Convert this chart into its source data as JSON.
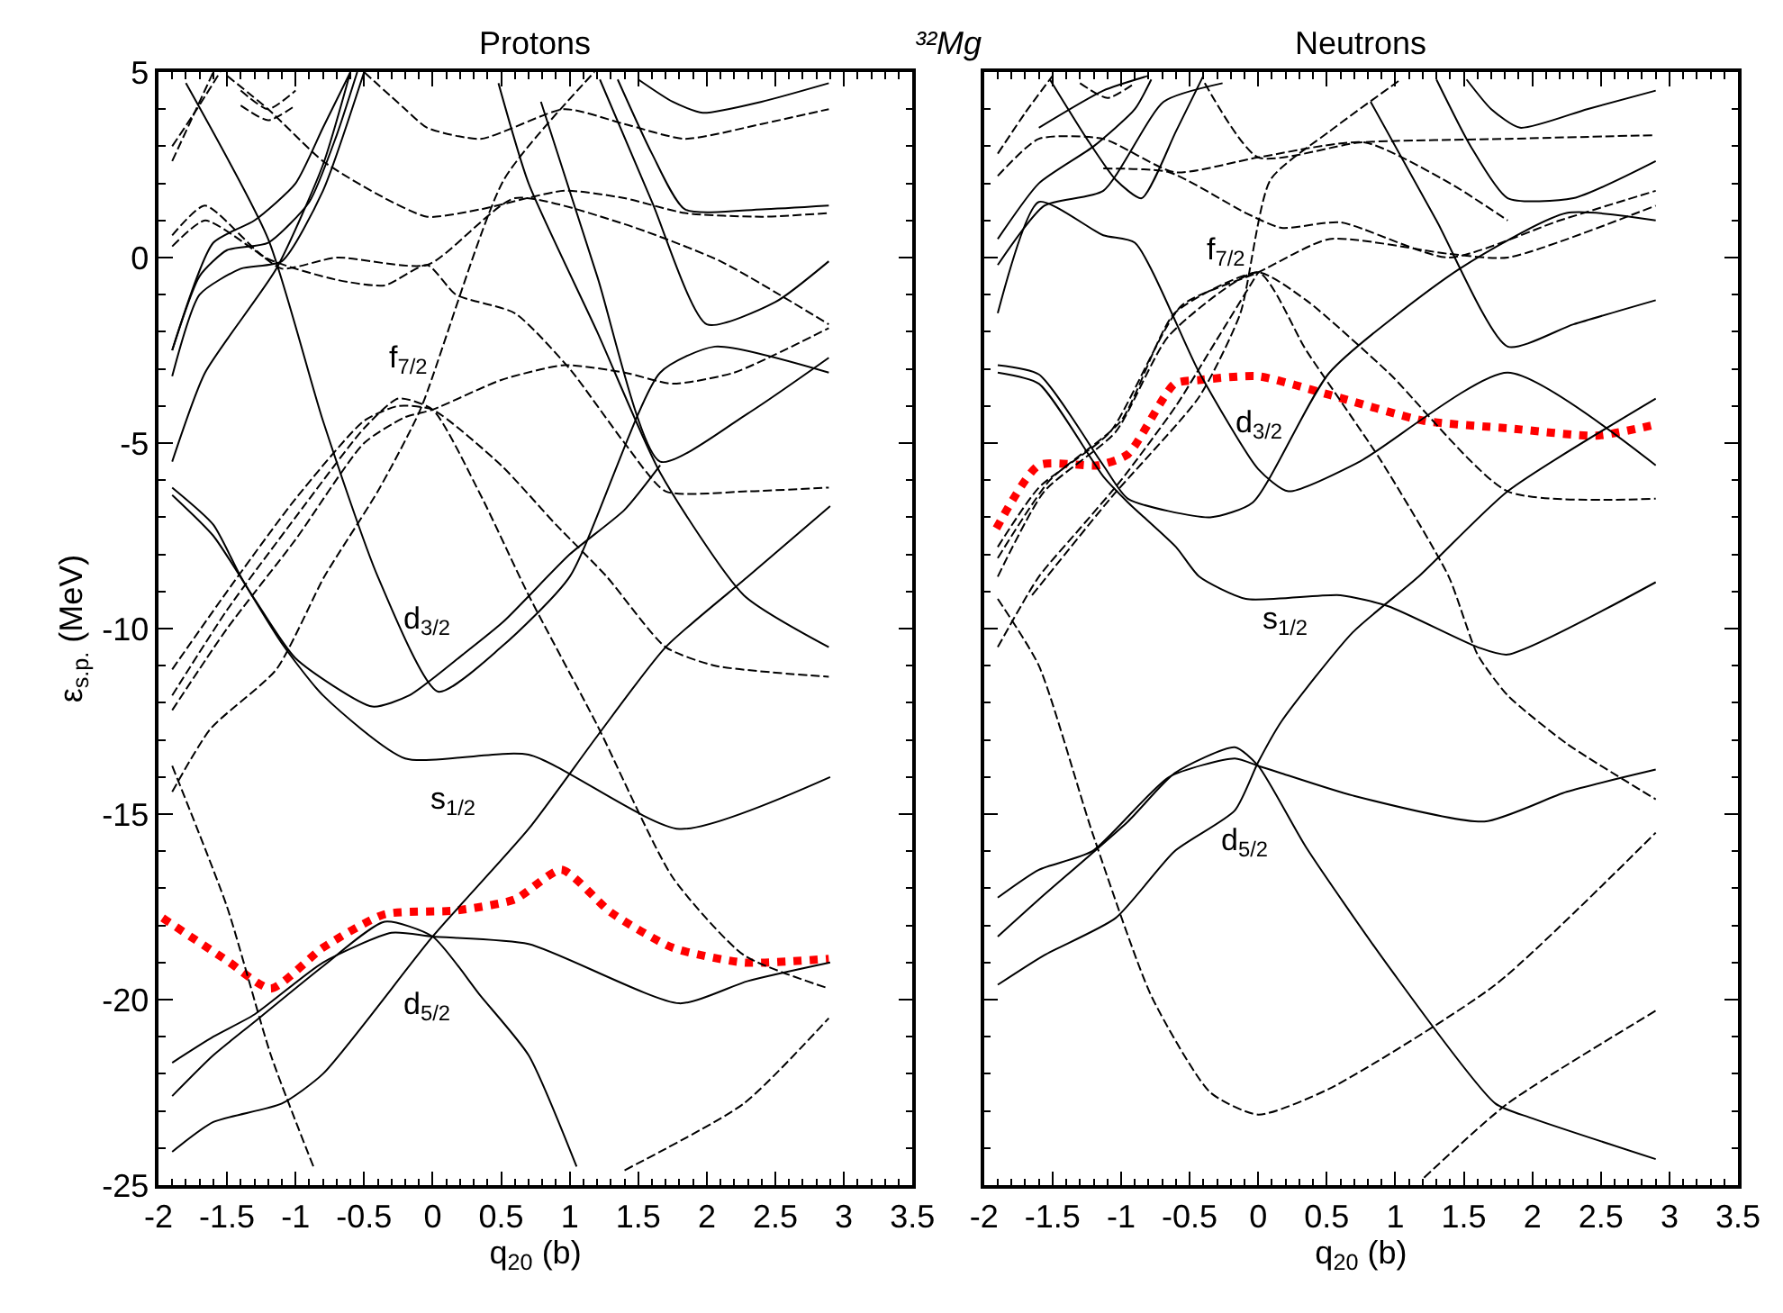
{
  "chart_data": [
    {
      "type": "line",
      "title": "Protons",
      "xlabel": "q$_{20}$ (b)",
      "ylabel": "ε$_{s.p.}$ (MeV)",
      "xlim": [
        -2,
        3.5
      ],
      "ylim": [
        -25,
        5
      ],
      "xticks": [
        -2,
        -1.5,
        -1,
        -0.5,
        0,
        0.5,
        1,
        1.5,
        2,
        2.5,
        3,
        3.5
      ],
      "yticks": [
        -25,
        -20,
        -15,
        -10,
        -5,
        0,
        5
      ],
      "annotations": [
        "³²Mg",
        {
          "text": "f$_{7/2}$",
          "x": 0,
          "y": -4.1
        },
        {
          "text": "d$_{3/2}$",
          "x": 0.04,
          "y": -11.7
        },
        {
          "text": "s$_{1/2}$",
          "x": -0.2,
          "y": -13.5
        },
        {
          "text": "d$_{5/2}$",
          "x": 0,
          "y": -18.3
        }
      ],
      "series": [
        {
          "color": "#ff0000",
          "line_style": "dotted",
          "x": [
            -1.97,
            -1.5,
            -1.18,
            -0.8,
            -0.35,
            0.17,
            0.6,
            0.94,
            1.3,
            1.75,
            2.27,
            2.89
          ],
          "values": [
            -17.8,
            -18.95,
            -19.7,
            -18.6,
            -17.7,
            -17.6,
            -17.3,
            -16.5,
            -17.65,
            -18.6,
            -19.0,
            -18.9
          ]
        },
        {
          "color": "#000000",
          "line_style": "solid",
          "x": [
            -1.9,
            -1.6,
            -1.3,
            -0.8,
            -0.3,
            0,
            0.7,
            1.8,
            2.3,
            2.9
          ],
          "values": [
            -21.7,
            -21.0,
            -20.4,
            -19.0,
            -18.2,
            -18.3,
            -18.5,
            -20.1,
            -19.5,
            -19.0
          ]
        },
        {
          "color": "#000000",
          "line_style": "solid",
          "x": [
            -1.9,
            -1.6,
            -1.3,
            -0.8,
            -0.35,
            0,
            0.35,
            0.7,
            1.05
          ],
          "values": [
            -22.6,
            -21.5,
            -20.6,
            -19.1,
            -17.9,
            -18.3,
            -19.9,
            -21.5,
            -24.5
          ]
        },
        {
          "color": "#000000",
          "line_style": "solid",
          "x": [
            -1.9,
            -1.6,
            -1.1,
            -0.8,
            0,
            0.7,
            1.2,
            1.7,
            2.3,
            2.9
          ],
          "values": [
            -24.1,
            -23.3,
            -22.8,
            -22.0,
            -18.3,
            -15.4,
            -12.9,
            -10.5,
            -8.6,
            -6.7
          ]
        },
        {
          "color": "#000000",
          "line_style": "solid",
          "x": [
            -1.9,
            -1.6,
            -1.4,
            -1.1,
            -0.8,
            -0.2,
            0.7,
            1.8,
            2.9
          ],
          "values": [
            -6.2,
            -7.2,
            -8.6,
            -10.4,
            -11.8,
            -13.5,
            -13.4,
            -15.4,
            -14.0
          ]
        },
        {
          "color": "#000000",
          "line_style": "solid",
          "x": [
            -1.9,
            -1.6,
            -1.3,
            -1.0,
            -0.44,
            -0.17,
            0.22,
            0.52,
            1.0,
            1.4,
            1.66
          ],
          "values": [
            -6.4,
            -7.5,
            -9.2,
            -10.8,
            -12.1,
            -11.8,
            -10.7,
            -9.8,
            -8.0,
            -6.8,
            -5.6
          ]
        },
        {
          "color": "#000000",
          "line_style": "solid",
          "x": [
            -1.8,
            -1.2,
            -0.8,
            -0.4,
            0.04,
            0.5,
            1.0,
            1.66,
            2.06,
            2.89
          ],
          "values": [
            4.7,
            0.5,
            -4.4,
            -8.6,
            -11.7,
            -10.5,
            -8.6,
            -3.1,
            -2.4,
            -3.1
          ]
        },
        {
          "color": "#000000",
          "line_style": "solid",
          "x": [
            0.48,
            0.7,
            1.2,
            1.66,
            2.27,
            2.89
          ],
          "values": [
            4.7,
            2.0,
            -2.0,
            -5.8,
            -9.1,
            -10.5
          ]
        },
        {
          "color": "#000000",
          "line_style": "solid",
          "x": [
            0.79,
            1.2,
            1.66,
            2.3,
            2.89
          ],
          "values": [
            4.2,
            -0.5,
            -5.5,
            -4.2,
            -2.7
          ]
        },
        {
          "color": "#000000",
          "line_style": "solid",
          "x": [
            1.22,
            1.6,
            2.0,
            2.5,
            2.89
          ],
          "values": [
            4.8,
            1.5,
            -1.8,
            -1.2,
            -0.1
          ]
        },
        {
          "color": "#000000",
          "line_style": "solid",
          "x": [
            1.5,
            1.75,
            1.97,
            2.4,
            2.89
          ],
          "values": [
            4.8,
            4.2,
            3.9,
            4.2,
            4.7
          ]
        },
        {
          "color": "#000000",
          "line_style": "solid",
          "x": [
            1.35,
            1.6,
            1.84,
            2.4,
            2.89
          ],
          "values": [
            4.8,
            2.8,
            1.3,
            1.3,
            1.4
          ]
        },
        {
          "color": "#000000",
          "line_style": "solid",
          "x": [
            -1.9,
            -1.6,
            -1.3,
            -1.0,
            -0.8,
            -0.6
          ],
          "values": [
            -2.5,
            0.4,
            1.0,
            2.0,
            3.5,
            5.0
          ]
        },
        {
          "color": "#000000",
          "line_style": "solid",
          "x": [
            -1.9,
            -1.7,
            -1.5,
            -1.2,
            -0.9,
            -0.7,
            -0.55
          ],
          "values": [
            -2.5,
            -0.5,
            0.2,
            0.4,
            1.5,
            3.3,
            5.0
          ]
        },
        {
          "color": "#000000",
          "line_style": "solid",
          "x": [
            -1.9,
            -1.7,
            -1.4,
            -1.1,
            -0.8,
            -0.5
          ],
          "values": [
            -3.2,
            -1.0,
            -0.3,
            -0.1,
            1.8,
            5.0
          ]
        },
        {
          "color": "#000000",
          "line_style": "solid",
          "x": [
            -1.9,
            -1.66,
            -1.14,
            -0.8,
            -0.6
          ],
          "values": [
            -5.5,
            -3.1,
            -0.3,
            2.5,
            5.0
          ]
        },
        {
          "color": "#000000",
          "line_style": "dashed",
          "x": [
            -1.9,
            -1.5,
            -1.18,
            -0.87
          ],
          "values": [
            -13.7,
            -17.5,
            -21.5,
            -24.5
          ]
        },
        {
          "color": "#000000",
          "line_style": "dashed",
          "x": [
            -1.9,
            -1.62,
            -1.14,
            -0.79,
            -0.4,
            -0.09,
            0.52,
            1.18
          ],
          "values": [
            -14.4,
            -12.7,
            -11.1,
            -8.6,
            -6.3,
            -4.1,
            2.1,
            5.0
          ]
        },
        {
          "color": "#000000",
          "line_style": "dashed",
          "x": [
            -1.9,
            -1.5,
            -1.0,
            -0.5,
            -0.25,
            0,
            0.35,
            0.7,
            1.2,
            1.75,
            2.27,
            2.89
          ],
          "values": [
            -11.8,
            -9.5,
            -7.0,
            -4.6,
            -3.8,
            -4.1,
            -6.4,
            -9.1,
            -12.6,
            -16.7,
            -18.8,
            -19.7
          ]
        },
        {
          "color": "#000000",
          "line_style": "dashed",
          "x": [
            -1.9,
            -1.5,
            -1.0,
            -0.5,
            -0.25,
            0,
            0.5,
            0.9,
            1.27,
            1.7,
            2.06,
            2.89
          ],
          "values": [
            -11.1,
            -9.0,
            -6.5,
            -4.4,
            -4.0,
            -4.1,
            -5.6,
            -7.2,
            -8.6,
            -10.5,
            -11.0,
            -11.3
          ]
        },
        {
          "color": "#000000",
          "line_style": "dashed",
          "x": [
            -1.9,
            -1.5,
            -1.0,
            -0.5,
            -0.2,
            0,
            0.5,
            0.96,
            1.4,
            1.75,
            2.2,
            2.89
          ],
          "values": [
            -12.2,
            -10.0,
            -7.6,
            -5.0,
            -4.3,
            -4.1,
            -3.3,
            -2.9,
            -3.1,
            -3.4,
            -3.1,
            -1.9
          ]
        },
        {
          "color": "#000000",
          "line_style": "dashed",
          "x": [
            -1.9,
            -1.66,
            -1.22,
            -0.7,
            -0.35,
            -0.04,
            0.17,
            0.6,
            1.0,
            1.4,
            1.7,
            2.3,
            2.89
          ],
          "values": [
            0.6,
            1.4,
            0.0,
            -0.6,
            -0.75,
            -0.2,
            -1.0,
            -1.5,
            -3.0,
            -5.0,
            -6.3,
            -6.3,
            -6.2
          ]
        },
        {
          "color": "#000000",
          "line_style": "dashed",
          "x": [
            -1.9,
            -1.66,
            -1.3,
            -1.1,
            -0.7,
            -0.04,
            0.6,
            1.4,
            2.1,
            2.89
          ],
          "values": [
            0.3,
            1.0,
            0.2,
            -0.3,
            0.0,
            -0.2,
            1.6,
            0.9,
            -0.1,
            -1.8
          ]
        },
        {
          "color": "#000000",
          "line_style": "dashed",
          "x": [
            -1.5,
            -1.2,
            -0.8,
            -0.4,
            -0.04,
            0.35,
            0.96,
            1.4,
            1.84,
            2.4,
            2.89
          ],
          "values": [
            4.9,
            4.0,
            2.6,
            1.7,
            1.1,
            1.3,
            1.8,
            1.6,
            1.2,
            1.1,
            1.2
          ]
        },
        {
          "color": "#000000",
          "line_style": "dashed",
          "x": [
            -0.5,
            -0.2,
            -0.04,
            0.35,
            0.96,
            1.4,
            1.84,
            2.4,
            2.89
          ],
          "values": [
            5.0,
            4.0,
            3.5,
            3.2,
            4.0,
            3.6,
            3.2,
            3.6,
            4.0
          ]
        },
        {
          "color": "#000000",
          "line_style": "dashed",
          "x": [
            -1.4,
            -1.2,
            -1.0
          ],
          "values": [
            4.5,
            4.0,
            4.5
          ]
        },
        {
          "color": "#000000",
          "line_style": "dashed",
          "x": [
            -1.4,
            -1.2,
            -1.0
          ],
          "values": [
            4.1,
            3.7,
            4.1
          ]
        },
        {
          "color": "#000000",
          "line_style": "dashed",
          "x": [
            -1.9,
            -1.75,
            -1.6
          ],
          "values": [
            2.6,
            3.8,
            5.0
          ]
        },
        {
          "color": "#000000",
          "line_style": "dashed",
          "x": [
            -1.9,
            -1.72,
            -1.55
          ],
          "values": [
            3.0,
            4.0,
            5.0
          ]
        },
        {
          "color": "#000000",
          "line_style": "dashed",
          "x": [
            1.4,
            2.27,
            2.89
          ],
          "values": [
            -24.6,
            -22.8,
            -20.5
          ]
        }
      ]
    },
    {
      "type": "line",
      "title": "Neutrons",
      "xlabel": "q$_{20}$ (b)",
      "xlim": [
        -2,
        3.5
      ],
      "ylim": [
        -25,
        5
      ],
      "xticks": [
        -2,
        -1.5,
        -1,
        -0.5,
        0,
        0.5,
        1,
        1.5,
        2,
        2.5,
        3,
        3.5
      ],
      "yticks": [
        -25,
        -20,
        -15,
        -10,
        -5,
        0,
        5
      ],
      "tick_labels": "x",
      "annotations": [
        {
          "text": "f$_{7/2}$",
          "x": 0,
          "y": -0.4
        },
        {
          "text": "d$_{3/2}$",
          "x": 0,
          "y": -5.7
        },
        {
          "text": "s$_{1/2}$",
          "x": -0.09,
          "y": -9.2
        },
        {
          "text": "d$_{5/2}$",
          "x": 0,
          "y": -13.6
        }
      ],
      "series": [
        {
          "color": "#ff0000",
          "line_style": "dotted",
          "x": [
            -1.91,
            -1.6,
            -1.17,
            -0.95,
            -0.61,
            -0.43,
            0,
            0.52,
            1.21,
            1.82,
            2.47,
            2.9
          ],
          "values": [
            -7.3,
            -5.6,
            -5.6,
            -5.3,
            -3.4,
            -3.3,
            -3.2,
            -3.7,
            -4.4,
            -4.6,
            -4.8,
            -4.5
          ]
        },
        {
          "color": "#000000",
          "line_style": "solid",
          "x": [
            -1.9,
            -1.6,
            -1.13,
            -0.95,
            -0.6,
            -0.43,
            -0.09,
            0.6,
            0.95,
            1.6,
            1.82,
            2.9
          ],
          "values": [
            -3.1,
            -3.4,
            -5.9,
            -6.6,
            -7.8,
            -8.6,
            -9.2,
            -9.1,
            -9.4,
            -10.5,
            -10.7,
            -8.75
          ]
        },
        {
          "color": "#000000",
          "line_style": "solid",
          "x": [
            -1.9,
            -1.6,
            -1.13,
            -0.95,
            -0.35,
            -0.04,
            0.52,
            1.47,
            2.25,
            2.9
          ],
          "values": [
            -2.9,
            -3.15,
            -5.6,
            -6.5,
            -7.0,
            -6.6,
            -3.1,
            -0.3,
            1.2,
            1.0
          ]
        },
        {
          "color": "#000000",
          "line_style": "solid",
          "x": [
            -1.9,
            -1.6,
            -1.13,
            -0.9,
            -0.43,
            0,
            0.22,
            0.74,
            1.82,
            2.9
          ],
          "values": [
            -1.5,
            1.5,
            0.6,
            0.4,
            -3.1,
            -5.7,
            -6.3,
            -5.5,
            -3.1,
            -5.6
          ]
        },
        {
          "color": "#000000",
          "line_style": "solid",
          "x": [
            -1.9,
            -1.56,
            -1.04,
            -0.61,
            -0.17,
            0,
            0.17,
            0.69,
            1.17,
            1.82,
            2.9
          ],
          "values": [
            -19.6,
            -18.8,
            -17.8,
            -16.0,
            -14.9,
            -13.6,
            -12.5,
            -10.1,
            -8.6,
            -6.3,
            -3.8
          ]
        },
        {
          "color": "#000000",
          "line_style": "solid",
          "x": [
            -1.9,
            -1.6,
            -1.21,
            -0.65,
            -0.17,
            0,
            0.17,
            0.69,
            1.65,
            2.25,
            2.9
          ],
          "values": [
            -17.25,
            -16.5,
            -16.0,
            -14.0,
            -13.5,
            -13.7,
            -13.9,
            -14.5,
            -15.2,
            -14.4,
            -13.8
          ]
        },
        {
          "color": "#000000",
          "line_style": "solid",
          "x": [
            -1.9,
            -1.6,
            -0.95,
            -0.61,
            -0.17,
            0,
            0.35,
            0.95,
            1.73,
            2.0,
            2.9
          ],
          "values": [
            -18.3,
            -17.3,
            -15.2,
            -13.9,
            -13.2,
            -13.7,
            -15.9,
            -19.1,
            -22.8,
            -23.2,
            -24.3
          ]
        },
        {
          "color": "#000000",
          "line_style": "solid",
          "x": [
            0.82,
            1.3,
            1.82,
            2.3,
            2.9
          ],
          "values": [
            4.2,
            1.0,
            -2.4,
            -1.8,
            -1.15
          ]
        },
        {
          "color": "#000000",
          "line_style": "solid",
          "x": [
            1.52,
            1.7,
            1.91,
            2.4,
            2.9
          ],
          "values": [
            4.8,
            4.0,
            3.5,
            4.0,
            4.5
          ]
        },
        {
          "color": "#000000",
          "line_style": "solid",
          "x": [
            1.3,
            1.55,
            1.82,
            2.3,
            2.9
          ],
          "values": [
            4.8,
            3.0,
            1.6,
            1.6,
            2.6
          ]
        },
        {
          "color": "#000000",
          "line_style": "solid",
          "x": [
            -1.9,
            -1.6,
            -1.2,
            -0.9,
            -0.78
          ],
          "values": [
            0.5,
            2.0,
            3.0,
            4.0,
            4.8
          ]
        },
        {
          "color": "#000000",
          "line_style": "solid",
          "x": [
            -1.9,
            -1.56,
            -1.13,
            -0.69,
            -0.26
          ],
          "values": [
            -0.2,
            1.4,
            1.8,
            4.2,
            4.7
          ]
        },
        {
          "color": "#000000",
          "line_style": "solid",
          "x": [
            -1.52,
            -1.25,
            -1.04,
            -0.85,
            -0.6,
            -0.4
          ],
          "values": [
            4.8,
            3.2,
            2.1,
            1.6,
            3.4,
            4.9
          ]
        },
        {
          "color": "#000000",
          "line_style": "solid",
          "x": [
            -1.6,
            -1.13,
            -0.8
          ],
          "values": [
            3.5,
            4.5,
            4.9
          ]
        },
        {
          "color": "#000000",
          "line_style": "dashed",
          "x": [
            -1.9,
            -1.6,
            -1.21,
            -0.78,
            -0.35,
            0,
            0.52,
            1.73,
            2.9
          ],
          "values": [
            -9.2,
            -11.0,
            -15.5,
            -19.9,
            -22.5,
            -23.1,
            -22.4,
            -19.6,
            -15.5
          ]
        },
        {
          "color": "#000000",
          "line_style": "dashed",
          "x": [
            -1.9,
            -1.6,
            -1.3,
            -1.0,
            -0.6,
            -0.3,
            0
          ],
          "values": [
            -10.5,
            -8.6,
            -7.3,
            -6.0,
            -4.0,
            -2.2,
            -0.4
          ]
        },
        {
          "color": "#000000",
          "line_style": "dashed",
          "x": [
            -1.9,
            -1.52,
            -1.0,
            -0.61,
            0,
            0.35,
            0.95,
            1.82,
            2.9
          ],
          "values": [
            -8.1,
            -6.0,
            -4.4,
            -1.5,
            -0.4,
            -1.15,
            -3.1,
            -6.3,
            -6.5
          ]
        },
        {
          "color": "#000000",
          "line_style": "dashed",
          "x": [
            -1.9,
            -1.6,
            -1.08,
            -0.56,
            0,
            0.52,
            1.39,
            1.82,
            2.9
          ],
          "values": [
            -7.8,
            -6.2,
            -4.7,
            -1.3,
            -0.4,
            0.5,
            0.1,
            0,
            1.4
          ]
        },
        {
          "color": "#000000",
          "line_style": "dashed",
          "x": [
            -1.9,
            -1.56,
            -1.04,
            -0.65,
            0,
            0.35,
            0.9,
            1.39,
            1.6,
            1.82,
            2.25,
            2.9
          ],
          "values": [
            -8.6,
            -6.3,
            -4.7,
            -2.1,
            -0.4,
            -2.5,
            -5.5,
            -8.6,
            -10.7,
            -11.8,
            -13.1,
            -14.6
          ]
        },
        {
          "color": "#000000",
          "line_style": "dashed",
          "x": [
            -1.65,
            -1.08,
            -0.43,
            -0.13,
            0.09,
            0.52,
            1.04
          ],
          "values": [
            -9.1,
            -6.5,
            -3.75,
            -1.5,
            2.1,
            3.4,
            4.8
          ]
        },
        {
          "color": "#000000",
          "line_style": "dashed",
          "x": [
            -1.13,
            -0.65,
            -0.09,
            0.17,
            0.6,
            1.39,
            2.2,
            2.9
          ],
          "values": [
            2.4,
            2.3,
            1.2,
            0.8,
            0.95,
            0.0,
            1.0,
            1.8
          ]
        },
        {
          "color": "#000000",
          "line_style": "dashed",
          "x": [
            -1.9,
            -1.6,
            -1.13,
            -0.61,
            0,
            0.78,
            1.4,
            1.82
          ],
          "values": [
            2.2,
            3.2,
            3.2,
            2.3,
            2.7,
            3.1,
            2.0,
            1.0
          ]
        },
        {
          "color": "#000000",
          "line_style": "dashed",
          "x": [
            -0.39,
            0,
            0.74,
            1.82,
            2.9
          ],
          "values": [
            4.7,
            2.7,
            3.1,
            3.2,
            3.3
          ]
        },
        {
          "color": "#000000",
          "line_style": "dashed",
          "x": [
            -1.9,
            -1.7,
            -1.5
          ],
          "values": [
            2.8,
            3.9,
            4.9
          ]
        },
        {
          "color": "#000000",
          "line_style": "dashed",
          "x": [
            -1.3,
            -1.1,
            -0.9
          ],
          "values": [
            4.7,
            4.3,
            4.7
          ]
        },
        {
          "color": "#000000",
          "line_style": "dashed",
          "x": [
            1.21,
            1.82,
            2.9
          ],
          "values": [
            -24.8,
            -22.8,
            -20.3
          ]
        }
      ]
    }
  ]
}
